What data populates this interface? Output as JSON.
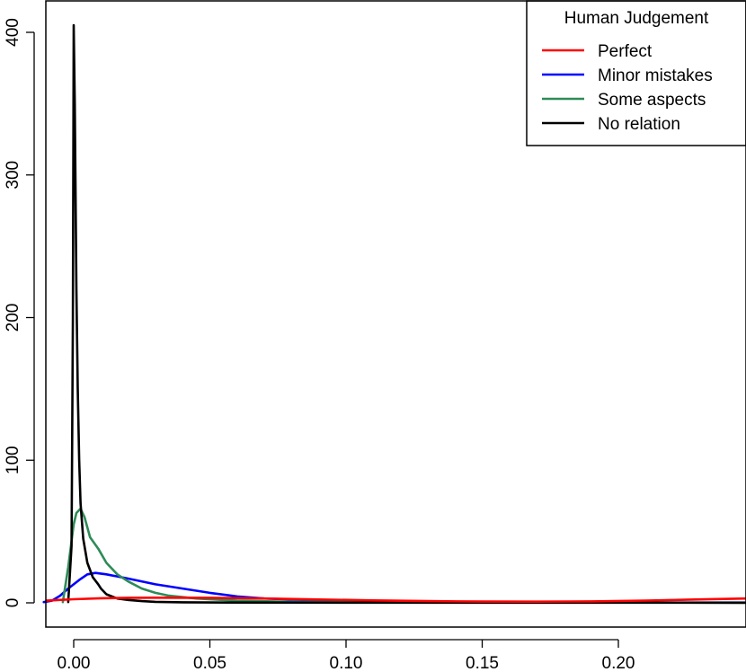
{
  "chart_data": {
    "type": "line",
    "title": "",
    "xlabel": "",
    "ylabel": "",
    "xlim": [
      -0.011,
      0.2475
    ],
    "ylim": [
      0,
      405
    ],
    "x_ticks": [
      "0.00",
      "0.05",
      "0.10",
      "0.15",
      "0.20"
    ],
    "x_tick_values": [
      0,
      0.05,
      0.1,
      0.15,
      0.2
    ],
    "y_ticks": [
      "0",
      "100",
      "200",
      "300",
      "400"
    ],
    "y_tick_values": [
      0,
      100,
      200,
      300,
      400
    ],
    "legend": {
      "title": "Human Judgement",
      "position": "top-right"
    },
    "series": [
      {
        "name": "Perfect",
        "color": "#ff0000",
        "points": [
          [
            -0.01,
            1.5
          ],
          [
            0.0,
            2.5
          ],
          [
            0.01,
            3.2
          ],
          [
            0.02,
            3.5
          ],
          [
            0.03,
            3.6
          ],
          [
            0.05,
            3.5
          ],
          [
            0.07,
            3.0
          ],
          [
            0.09,
            2.3
          ],
          [
            0.11,
            1.7
          ],
          [
            0.13,
            1.2
          ],
          [
            0.15,
            0.9
          ],
          [
            0.17,
            0.8
          ],
          [
            0.19,
            1.0
          ],
          [
            0.21,
            1.6
          ],
          [
            0.23,
            2.4
          ],
          [
            0.2475,
            3.0
          ]
        ]
      },
      {
        "name": "Minor mistakes",
        "color": "#0000ff",
        "points": [
          [
            -0.011,
            0.5
          ],
          [
            -0.008,
            1.5
          ],
          [
            -0.005,
            5
          ],
          [
            -0.002,
            10
          ],
          [
            0.002,
            16
          ],
          [
            0.005,
            20
          ],
          [
            0.008,
            21
          ],
          [
            0.012,
            20
          ],
          [
            0.02,
            17
          ],
          [
            0.03,
            13
          ],
          [
            0.04,
            10
          ],
          [
            0.05,
            7
          ],
          [
            0.06,
            4.5
          ],
          [
            0.07,
            3
          ],
          [
            0.09,
            1.7
          ],
          [
            0.12,
            0.8
          ],
          [
            0.15,
            0.4
          ],
          [
            0.2,
            0.2
          ],
          [
            0.2475,
            0.2
          ]
        ]
      },
      {
        "name": "Some aspects",
        "color": "#2e8b57",
        "points": [
          [
            -0.004,
            0.5
          ],
          [
            -0.002,
            25
          ],
          [
            0.0,
            55
          ],
          [
            0.001,
            63
          ],
          [
            0.0025,
            66
          ],
          [
            0.004,
            60
          ],
          [
            0.006,
            46
          ],
          [
            0.009,
            38
          ],
          [
            0.012,
            28
          ],
          [
            0.016,
            20
          ],
          [
            0.02,
            15
          ],
          [
            0.025,
            10
          ],
          [
            0.03,
            7
          ],
          [
            0.035,
            5
          ],
          [
            0.045,
            3
          ],
          [
            0.06,
            1.5
          ],
          [
            0.08,
            0.7
          ],
          [
            0.12,
            0.3
          ],
          [
            0.2475,
            0.1
          ]
        ]
      },
      {
        "name": "No relation",
        "color": "#000000",
        "points": [
          [
            -0.002,
            0.5
          ],
          [
            -0.0008,
            40
          ],
          [
            -0.0003,
            200
          ],
          [
            0.0,
            405
          ],
          [
            0.0004,
            350
          ],
          [
            0.001,
            220
          ],
          [
            0.0015,
            150
          ],
          [
            0.002,
            100
          ],
          [
            0.0025,
            70
          ],
          [
            0.0035,
            45
          ],
          [
            0.005,
            28
          ],
          [
            0.007,
            18
          ],
          [
            0.009,
            13
          ],
          [
            0.01,
            10
          ],
          [
            0.012,
            6
          ],
          [
            0.016,
            3
          ],
          [
            0.02,
            2
          ],
          [
            0.025,
            1.2
          ],
          [
            0.03,
            0.7
          ],
          [
            0.04,
            0.4
          ],
          [
            0.06,
            0.2
          ],
          [
            0.1,
            0.1
          ],
          [
            0.2475,
            0.05
          ]
        ]
      }
    ]
  }
}
